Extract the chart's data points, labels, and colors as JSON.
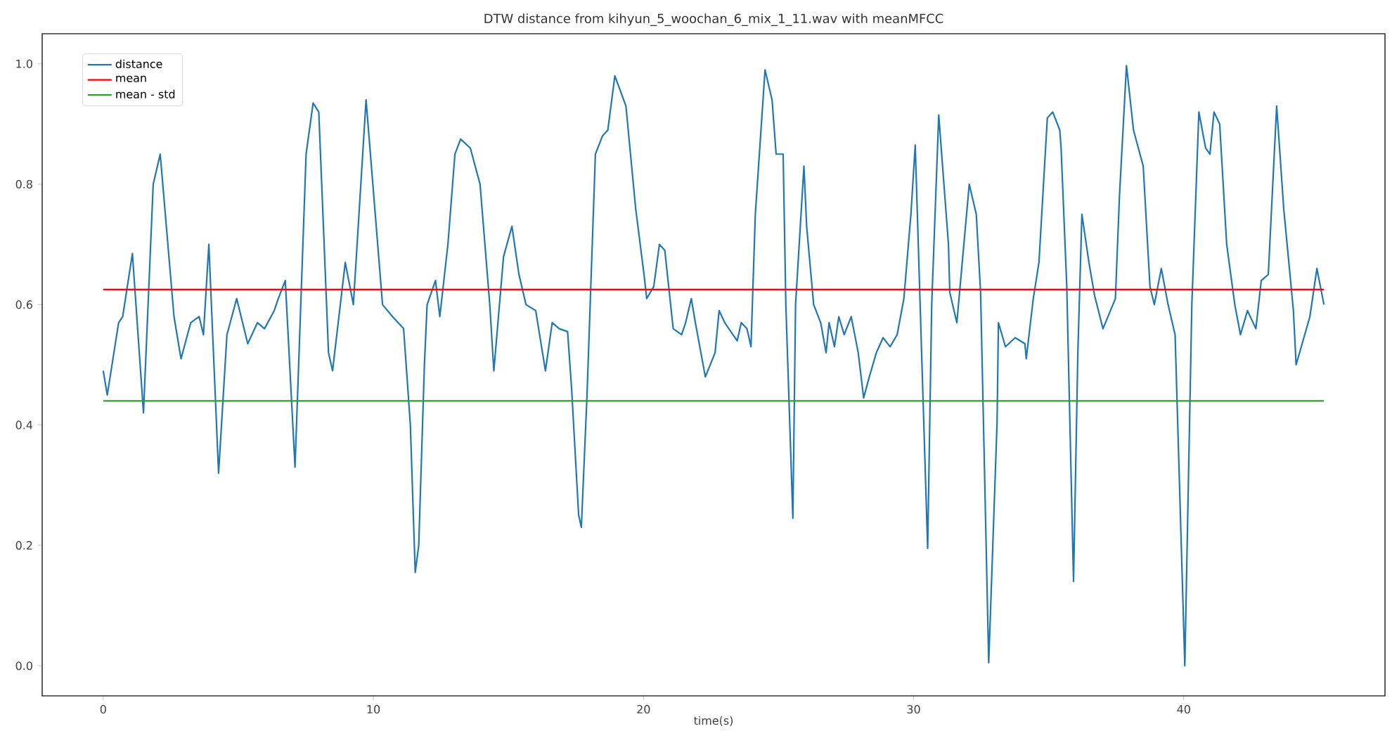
{
  "chart_data": {
    "type": "line",
    "title": "DTW distance from kihyun_5_woochan_6_mix_1_11.wav with meanMFCC",
    "xlabel": "time(s)",
    "xlim": [
      -2.26,
      47.45
    ],
    "ylim": [
      -0.05,
      1.05
    ],
    "xticks": [
      0,
      10,
      20,
      30,
      40
    ],
    "yticks": [
      {
        "value": 0,
        "label": "0.0"
      },
      {
        "value": 0.2,
        "label": "0.2"
      },
      {
        "value": 0.4,
        "label": "0.4"
      },
      {
        "value": 0.6,
        "label": "0.6"
      },
      {
        "value": 0.8,
        "label": "0.8"
      },
      {
        "value": 1.0,
        "label": "1.0"
      }
    ],
    "legend": "top left",
    "grid": false,
    "series": [
      {
        "name": "distance",
        "color": "#1f77b4",
        "x": [
          0.0,
          0.15,
          0.57,
          0.72,
          1.08,
          1.49,
          1.85,
          2.11,
          2.62,
          2.88,
          3.24,
          3.55,
          3.71,
          3.91,
          4.27,
          4.58,
          4.94,
          5.35,
          5.71,
          5.97,
          6.33,
          6.48,
          6.74,
          7.1,
          7.51,
          7.77,
          7.98,
          8.34,
          8.49,
          8.96,
          9.26,
          9.73,
          10.34,
          10.71,
          11.12,
          11.37,
          11.55,
          11.68,
          11.89,
          11.99,
          12.3,
          12.46,
          12.76,
          13.02,
          13.23,
          13.59,
          13.95,
          14.31,
          14.46,
          14.82,
          15.13,
          15.39,
          15.65,
          16.01,
          16.37,
          16.62,
          16.88,
          17.19,
          17.34,
          17.6,
          17.7,
          17.91,
          18.22,
          18.48,
          18.68,
          18.94,
          19.35,
          19.71,
          20.02,
          20.12,
          20.38,
          20.59,
          20.79,
          21.1,
          21.41,
          21.56,
          21.77,
          21.92,
          22.29,
          22.65,
          22.8,
          23.01,
          23.31,
          23.47,
          23.62,
          23.83,
          23.98,
          24.14,
          24.5,
          24.76,
          24.91,
          25.17,
          25.27,
          25.53,
          25.63,
          25.94,
          26.04,
          26.3,
          26.56,
          26.76,
          26.87,
          27.07,
          27.23,
          27.43,
          27.69,
          27.95,
          28.15,
          28.36,
          28.62,
          28.87,
          29.13,
          29.39,
          29.64,
          29.9,
          30.06,
          30.31,
          30.52,
          30.67,
          30.93,
          31.29,
          31.34,
          31.6,
          32.06,
          32.32,
          32.48,
          32.78,
          33.09,
          33.14,
          33.4,
          33.76,
          34.12,
          34.17,
          34.43,
          34.64,
          34.95,
          35.15,
          35.41,
          35.46,
          35.67,
          35.92,
          36.08,
          36.23,
          36.49,
          36.7,
          37.01,
          37.47,
          37.62,
          37.88,
          38.14,
          38.5,
          38.75,
          38.91,
          39.17,
          39.42,
          39.68,
          40.04,
          40.3,
          40.56,
          40.81,
          40.97,
          41.12,
          41.33,
          41.59,
          41.89,
          42.1,
          42.36,
          42.67,
          42.87,
          43.13,
          43.44,
          43.7,
          44.06,
          44.16,
          44.67,
          44.93,
          45.19
        ],
        "values": [
          0.49,
          0.45,
          0.57,
          0.58,
          0.685,
          0.42,
          0.8,
          0.85,
          0.58,
          0.51,
          0.57,
          0.58,
          0.55,
          0.7,
          0.32,
          0.55,
          0.61,
          0.535,
          0.57,
          0.56,
          0.59,
          0.61,
          0.64,
          0.33,
          0.85,
          0.935,
          0.92,
          0.52,
          0.49,
          0.67,
          0.6,
          0.94,
          0.6,
          0.58,
          0.56,
          0.4,
          0.155,
          0.2,
          0.5,
          0.6,
          0.64,
          0.58,
          0.7,
          0.85,
          0.875,
          0.86,
          0.8,
          0.6,
          0.49,
          0.68,
          0.73,
          0.65,
          0.6,
          0.59,
          0.49,
          0.57,
          0.56,
          0.555,
          0.46,
          0.25,
          0.23,
          0.45,
          0.85,
          0.88,
          0.89,
          0.98,
          0.93,
          0.76,
          0.65,
          0.61,
          0.63,
          0.7,
          0.69,
          0.56,
          0.55,
          0.57,
          0.61,
          0.57,
          0.48,
          0.52,
          0.59,
          0.57,
          0.55,
          0.54,
          0.57,
          0.56,
          0.53,
          0.75,
          0.99,
          0.94,
          0.85,
          0.85,
          0.6,
          0.245,
          0.6,
          0.83,
          0.73,
          0.6,
          0.57,
          0.52,
          0.57,
          0.53,
          0.58,
          0.55,
          0.58,
          0.52,
          0.445,
          0.48,
          0.52,
          0.545,
          0.53,
          0.55,
          0.61,
          0.75,
          0.865,
          0.5,
          0.195,
          0.6,
          0.915,
          0.7,
          0.62,
          0.57,
          0.8,
          0.75,
          0.62,
          0.005,
          0.405,
          0.57,
          0.53,
          0.545,
          0.535,
          0.51,
          0.61,
          0.67,
          0.91,
          0.92,
          0.89,
          0.86,
          0.63,
          0.14,
          0.52,
          0.75,
          0.67,
          0.615,
          0.56,
          0.61,
          0.78,
          0.997,
          0.89,
          0.83,
          0.63,
          0.6,
          0.66,
          0.6,
          0.55,
          0.0,
          0.6,
          0.92,
          0.86,
          0.85,
          0.92,
          0.9,
          0.7,
          0.6,
          0.55,
          0.59,
          0.56,
          0.64,
          0.65,
          0.93,
          0.76,
          0.59,
          0.5,
          0.58,
          0.66,
          0.6
        ]
      },
      {
        "name": "mean",
        "color": "#ff0000",
        "x": [
          0.0,
          45.19
        ],
        "values": [
          0.625,
          0.625
        ]
      },
      {
        "name": "mean - std",
        "color": "#2ca02c",
        "x": [
          0.0,
          45.19
        ],
        "values": [
          0.44,
          0.44
        ]
      }
    ]
  }
}
